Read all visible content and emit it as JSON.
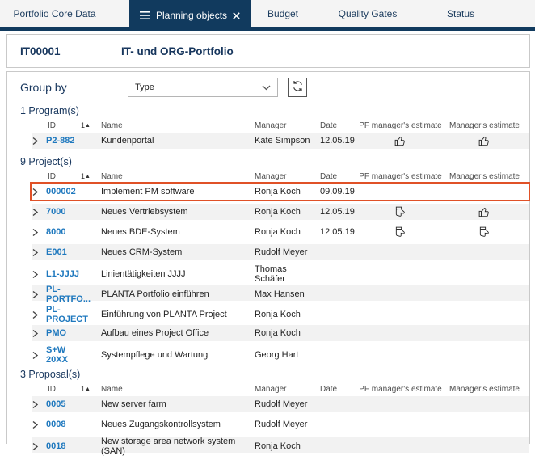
{
  "tabs": [
    {
      "label": "Portfolio Core Data",
      "active": false
    },
    {
      "label": "Planning objects",
      "active": true
    },
    {
      "label": "Budget",
      "active": false
    },
    {
      "label": "Quality Gates",
      "active": false
    },
    {
      "label": "Status",
      "active": false
    }
  ],
  "header": {
    "id": "IT00001",
    "title": "IT- und ORG-Portfolio"
  },
  "group_by": {
    "label": "Group by",
    "selected": "Type"
  },
  "columns": {
    "id": "ID",
    "sort_indicator": "1",
    "name": "Name",
    "manager": "Manager",
    "date": "Date",
    "pf_estimate": "PF manager's estimate",
    "manager_estimate": "Manager's estimate"
  },
  "sections": [
    {
      "title": "1 Program(s)",
      "rows": [
        {
          "id": "P2-882",
          "name": "Kundenportal",
          "manager": "Kate Simpson",
          "date": "12.05.19",
          "pf_estimate": "thumb-up",
          "manager_estimate": "thumb-up",
          "shaded": true,
          "highlighted": false
        }
      ]
    },
    {
      "title": "9 Project(s)",
      "rows": [
        {
          "id": "000002",
          "name": "Implement PM software",
          "manager": "Ronja Koch",
          "date": "09.09.19",
          "pf_estimate": "",
          "manager_estimate": "",
          "shaded": false,
          "highlighted": true
        },
        {
          "id": "7000",
          "name": "Neues Vertriebsystem",
          "manager": "Ronja Koch",
          "date": "12.05.19",
          "pf_estimate": "thumb-side",
          "manager_estimate": "thumb-up",
          "shaded": true,
          "highlighted": false
        },
        {
          "id": "8000",
          "name": "Neues BDE-System",
          "manager": "Ronja Koch",
          "date": "12.05.19",
          "pf_estimate": "thumb-side",
          "manager_estimate": "thumb-side",
          "shaded": false,
          "highlighted": false
        },
        {
          "id": "E001",
          "name": "Neues CRM-System",
          "manager": "Rudolf Meyer",
          "date": "",
          "pf_estimate": "",
          "manager_estimate": "",
          "shaded": true,
          "highlighted": false
        },
        {
          "id": "L1-JJJJ",
          "name": "Linientätigkeiten JJJJ",
          "manager": "Thomas Schäfer",
          "date": "",
          "pf_estimate": "",
          "manager_estimate": "",
          "shaded": false,
          "highlighted": false
        },
        {
          "id": "PL-PORTFO...",
          "name": "PLANTA Portfolio einführen",
          "manager": "Max Hansen",
          "date": "",
          "pf_estimate": "",
          "manager_estimate": "",
          "shaded": true,
          "highlighted": false
        },
        {
          "id": "PL-PROJECT",
          "name": "Einführung von PLANTA Project",
          "manager": "Ronja Koch",
          "date": "",
          "pf_estimate": "",
          "manager_estimate": "",
          "shaded": false,
          "highlighted": false
        },
        {
          "id": "PMO",
          "name": "Aufbau eines Project Office",
          "manager": "Ronja Koch",
          "date": "",
          "pf_estimate": "",
          "manager_estimate": "",
          "shaded": true,
          "highlighted": false
        },
        {
          "id": "S+W 20XX",
          "name": "Systempflege und Wartung",
          "manager": "Georg Hart",
          "date": "",
          "pf_estimate": "",
          "manager_estimate": "",
          "shaded": false,
          "highlighted": false
        }
      ]
    },
    {
      "title": "3 Proposal(s)",
      "rows": [
        {
          "id": "0005",
          "name": "New server farm",
          "manager": "Rudolf Meyer",
          "date": "",
          "pf_estimate": "",
          "manager_estimate": "",
          "shaded": true,
          "highlighted": false
        },
        {
          "id": "0008",
          "name": "Neues Zugangskontrollsystem",
          "manager": "Rudolf Meyer",
          "date": "",
          "pf_estimate": "",
          "manager_estimate": "",
          "shaded": false,
          "highlighted": false
        },
        {
          "id": "0018",
          "name": "New storage area network system (SAN)",
          "manager": "Ronja Koch",
          "date": "",
          "pf_estimate": "",
          "manager_estimate": "",
          "shaded": true,
          "highlighted": false
        }
      ]
    }
  ],
  "colors": {
    "accent_navy": "#113a5e",
    "link_blue": "#1e78be",
    "highlight_red": "#e05127",
    "row_shade": "#f2f2f2"
  }
}
